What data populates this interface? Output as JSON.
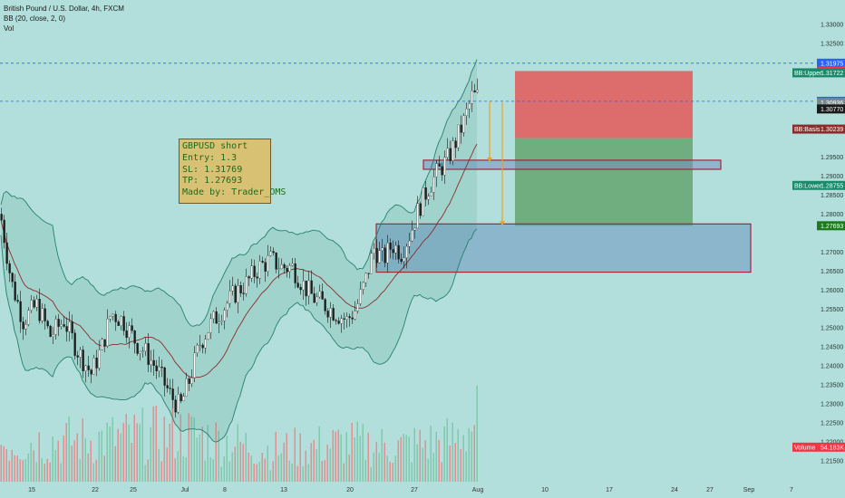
{
  "legend": {
    "title": "British Pound / U.S. Dollar, 4h, FXCM",
    "bb": "BB (20, close, 2, 0)",
    "vol": "Vol"
  },
  "note": {
    "line1": "GBPUSD short",
    "line2": "Entry: 1.3",
    "line3": "SL: 1.31769",
    "line4": "TP: 1.27693",
    "line5": "Made by: Trader_OMS"
  },
  "colors": {
    "background": "#b2dfdb",
    "bull": "#ffffff",
    "bear": "#1a1a1a",
    "band": "#26806e",
    "basis": "#8b2c2c",
    "stop_zone": "#e06363",
    "target_zone": "#6aa978",
    "box_fill": "#6b93c0",
    "box_border": "#a3243a",
    "arrow": "#f0a020",
    "vol_red": "#e58a8a",
    "vol_green": "#7cc7a8"
  },
  "chart_data": {
    "type": "candlestick",
    "symbol": "British Pound / U.S. Dollar, 4h, FXCM",
    "ylim": [
      1.2095,
      1.3364
    ],
    "y_ticks": [
      "1.33000",
      "1.32500",
      "1.31975",
      "1.31769",
      "1.31722",
      "1.30971",
      "1.30936",
      "1.30770",
      "1.30239",
      "1.29500",
      "1.29000",
      "1.28755",
      "1.28500",
      "1.28000",
      "1.27693",
      "1.27000",
      "1.26500",
      "1.26000",
      "1.25500",
      "1.25000",
      "1.24500",
      "1.24000",
      "1.23500",
      "1.23000",
      "1.22500",
      "1.22000",
      "1.21500"
    ],
    "x_ticks": [
      "15",
      "22",
      "25",
      "Jul",
      "8",
      "13",
      "20",
      "27",
      "Aug",
      "10",
      "17",
      "24",
      "27",
      "Sep",
      "7"
    ],
    "price_tags": [
      {
        "label": "1.31975",
        "value": 1.31975,
        "color": "#2962ff"
      },
      {
        "label": "1.31769",
        "value": 1.31769,
        "color": "#f23645"
      },
      {
        "label": "BB:Upper",
        "value2": "1.31722",
        "value": 1.31722,
        "color": "#1b8a6b"
      },
      {
        "label": "1.30971",
        "value": 1.30971,
        "color": "#2962ff"
      },
      {
        "label": "1.30936",
        "value": 1.30936,
        "color": "#7a8a8a"
      },
      {
        "label": "1.30770",
        "value": 1.3077,
        "color": "#1a1a1a"
      },
      {
        "label": "BB:Basis",
        "value2": "1.30239",
        "value": 1.30239,
        "color": "#8b2c2c"
      },
      {
        "label": "BB:Lower",
        "value2": "1.28755",
        "value": 1.28755,
        "color": "#1b8a6b"
      },
      {
        "label": "1.27693",
        "value": 1.27693,
        "color": "#1e7a1e"
      },
      {
        "label": "Volume",
        "value2": "54.183K",
        "value": 1.2186,
        "color": "#f23645"
      }
    ],
    "horizontal_lines": [
      1.31975,
      1.30971
    ],
    "position": {
      "entry": 1.3,
      "stop_loss": 1.31769,
      "take_profit": 1.27693
    },
    "zones": [
      {
        "name": "resistance-box",
        "top": 1.2942,
        "bottom": 1.2918
      },
      {
        "name": "support-box",
        "top": 1.2774,
        "bottom": 1.2647
      }
    ],
    "price_path": [
      [
        0,
        1.28
      ],
      [
        12,
        1.262
      ],
      [
        25,
        1.252
      ],
      [
        40,
        1.256
      ],
      [
        55,
        1.248
      ],
      [
        70,
        1.252
      ],
      [
        85,
        1.244
      ],
      [
        100,
        1.238
      ],
      [
        112,
        1.245
      ],
      [
        122,
        1.254
      ],
      [
        135,
        1.252
      ],
      [
        150,
        1.246
      ],
      [
        162,
        1.243
      ],
      [
        175,
        1.238
      ],
      [
        188,
        1.232
      ],
      [
        198,
        1.229
      ],
      [
        208,
        1.236
      ],
      [
        220,
        1.246
      ],
      [
        232,
        1.251
      ],
      [
        245,
        1.255
      ],
      [
        258,
        1.259
      ],
      [
        272,
        1.262
      ],
      [
        285,
        1.266
      ],
      [
        298,
        1.268
      ],
      [
        310,
        1.266
      ],
      [
        322,
        1.266
      ],
      [
        335,
        1.261
      ],
      [
        345,
        1.258
      ],
      [
        358,
        1.256
      ],
      [
        370,
        1.254
      ],
      [
        382,
        1.252
      ],
      [
        392,
        1.255
      ],
      [
        402,
        1.262
      ],
      [
        412,
        1.271
      ],
      [
        422,
        1.268
      ],
      [
        432,
        1.272
      ],
      [
        442,
        1.27
      ],
      [
        452,
        1.275
      ],
      [
        462,
        1.282
      ],
      [
        472,
        1.287
      ],
      [
        482,
        1.291
      ],
      [
        492,
        1.294
      ],
      [
        502,
        1.299
      ],
      [
        512,
        1.305
      ],
      [
        520,
        1.311
      ],
      [
        528,
        1.311
      ]
    ],
    "volume_profile": [
      [
        0,
        0.55
      ],
      [
        100,
        0.6
      ],
      [
        200,
        0.7
      ],
      [
        300,
        0.45
      ],
      [
        380,
        0.55
      ],
      [
        440,
        0.5
      ],
      [
        500,
        0.6
      ],
      [
        528,
        0.9
      ]
    ]
  }
}
